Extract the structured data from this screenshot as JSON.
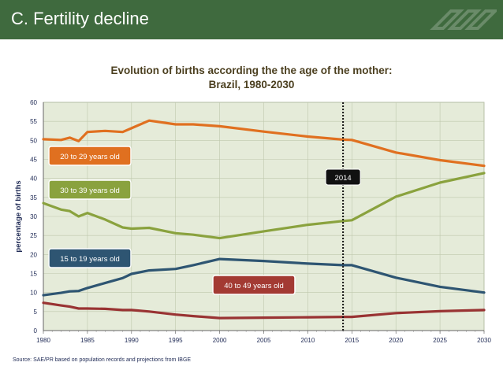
{
  "header": {
    "title": "C. Fertility decline"
  },
  "source": "Source: SAE/PR based on population records and projections from IBGE",
  "colors": {
    "header_bg": "#3f6a3e",
    "plot_bg": "#e5ebd9",
    "age_20_29": "#e07020",
    "age_30_39": "#8aa23e",
    "age_15_19": "#2e5572",
    "age_40_49": "#993333",
    "box_20_29": "#e07020",
    "box_30_39": "#8aa23e",
    "box_15_19": "#2e5572",
    "box_40_49": "#a33a33",
    "marker_box": "#111111"
  },
  "chart_data": {
    "type": "line",
    "title": "Evolution of births according the the age of the mother:",
    "subtitle": "Brazil, 1980-2030",
    "ylabel": "percentage of births",
    "xlabel": "",
    "xlim": [
      1980,
      2030
    ],
    "ylim": [
      0,
      60
    ],
    "xticks": [
      1980,
      1985,
      1990,
      1995,
      2000,
      2005,
      2010,
      2015,
      2020,
      2025,
      2030
    ],
    "yticks": [
      0,
      5,
      10,
      15,
      20,
      25,
      30,
      35,
      40,
      45,
      50,
      55,
      60
    ],
    "grid": true,
    "marker_line": {
      "x": 2014,
      "label": "2014"
    },
    "series": [
      {
        "name": "20 to 29 years old",
        "color_key": "age_20_29",
        "x": [
          1980,
          1982,
          1983,
          1984,
          1985,
          1987,
          1989,
          1990,
          1992,
          1995,
          1997,
          2000,
          2005,
          2010,
          2014,
          2015,
          2020,
          2025,
          2030
        ],
        "y": [
          50.3,
          50.1,
          50.7,
          49.8,
          52.2,
          52.5,
          52.2,
          53.2,
          55.2,
          54.2,
          54.2,
          53.7,
          52.3,
          51.0,
          50.2,
          50.1,
          46.8,
          44.8,
          43.3
        ]
      },
      {
        "name": "30 to 39 years old",
        "color_key": "age_30_39",
        "x": [
          1980,
          1982,
          1983,
          1984,
          1985,
          1987,
          1989,
          1990,
          1992,
          1995,
          1997,
          2000,
          2005,
          2010,
          2014,
          2015,
          2020,
          2025,
          2030
        ],
        "y": [
          33.5,
          31.8,
          31.4,
          30.0,
          30.9,
          29.2,
          27.1,
          26.8,
          27.0,
          25.6,
          25.2,
          24.3,
          26.1,
          27.8,
          28.8,
          29.0,
          35.2,
          38.9,
          41.4
        ]
      },
      {
        "name": "15 to 19 years old",
        "color_key": "age_15_19",
        "x": [
          1980,
          1982,
          1983,
          1984,
          1985,
          1987,
          1989,
          1990,
          1992,
          1995,
          1997,
          2000,
          2005,
          2010,
          2014,
          2015,
          2020,
          2025,
          2030
        ],
        "y": [
          9.3,
          9.9,
          10.3,
          10.4,
          11.2,
          12.5,
          13.8,
          14.9,
          15.8,
          16.2,
          17.2,
          18.8,
          18.3,
          17.6,
          17.2,
          17.2,
          13.9,
          11.5,
          10.0
        ]
      },
      {
        "name": "40 to 49 years old",
        "color_key": "age_40_49",
        "x": [
          1980,
          1982,
          1983,
          1984,
          1985,
          1987,
          1989,
          1990,
          1992,
          1995,
          1997,
          2000,
          2005,
          2010,
          2014,
          2015,
          2020,
          2025,
          2030
        ],
        "y": [
          7.3,
          6.6,
          6.3,
          5.8,
          5.8,
          5.7,
          5.4,
          5.4,
          5.0,
          4.2,
          3.8,
          3.3,
          3.4,
          3.5,
          3.6,
          3.6,
          4.6,
          5.1,
          5.4
        ]
      }
    ]
  }
}
